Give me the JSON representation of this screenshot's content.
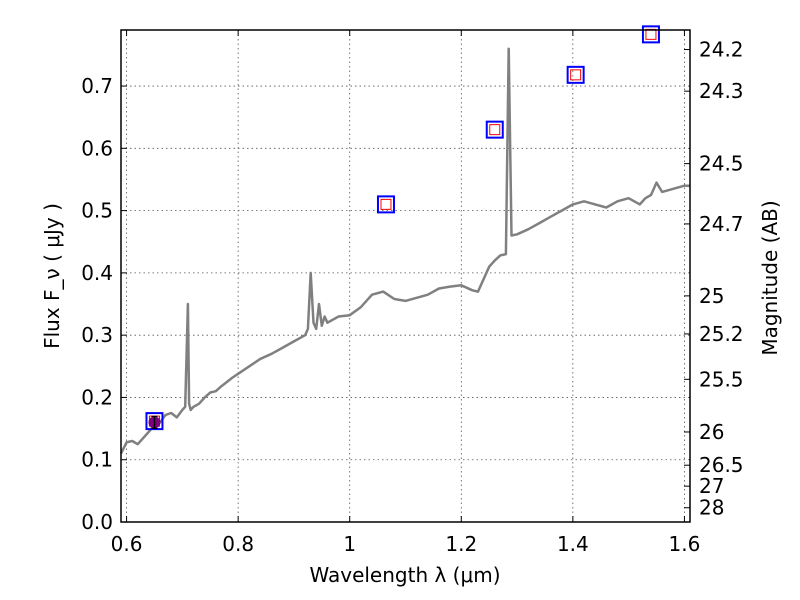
{
  "chart_data": {
    "type": "line",
    "xlabel": "Wavelength  λ (μm)",
    "ylabel": "Flux  F_ν  ( μJy )",
    "y2label": "Magnitude (AB)",
    "xlim": [
      0.59,
      1.61
    ],
    "ylim": [
      0.0,
      0.79
    ],
    "grid": true,
    "x_ticks": [
      0.6,
      0.8,
      1.0,
      1.2,
      1.4,
      1.6
    ],
    "x_tick_labels": [
      "0.6",
      "0.8",
      "1",
      "1.2",
      "1.4",
      "1.6"
    ],
    "y_ticks": [
      0.0,
      0.1,
      0.2,
      0.3,
      0.4,
      0.5,
      0.6,
      0.7
    ],
    "y_tick_labels": [
      "0.0",
      "0.1",
      "0.2",
      "0.3",
      "0.4",
      "0.5",
      "0.6",
      "0.7"
    ],
    "mag_ticks": [
      "24.2",
      "24.3",
      "24.5",
      "24.7",
      "25",
      "25.2",
      "25.5",
      "26",
      "26.5",
      "27",
      "28"
    ],
    "colors": {
      "spectrum": "#808080",
      "open_square_outer": "#0000ff",
      "open_square_inner": "#ff0000",
      "filled_marker": "#7f007f",
      "axis": "#000000",
      "grid": "#555555"
    },
    "series": [
      {
        "type": "line",
        "x": [
          0.59,
          0.6,
          0.61,
          0.62,
          0.63,
          0.64,
          0.65,
          0.66,
          0.67,
          0.68,
          0.69,
          0.7,
          0.705,
          0.71,
          0.712,
          0.715,
          0.72,
          0.73,
          0.74,
          0.75,
          0.76,
          0.77,
          0.78,
          0.79,
          0.8,
          0.82,
          0.84,
          0.86,
          0.88,
          0.9,
          0.91,
          0.92,
          0.925,
          0.93,
          0.935,
          0.94,
          0.945,
          0.95,
          0.955,
          0.96,
          0.98,
          1.0,
          1.02,
          1.04,
          1.06,
          1.08,
          1.1,
          1.12,
          1.14,
          1.16,
          1.18,
          1.2,
          1.22,
          1.23,
          1.24,
          1.25,
          1.26,
          1.27,
          1.28,
          1.285,
          1.29,
          1.3,
          1.32,
          1.34,
          1.36,
          1.38,
          1.4,
          1.42,
          1.44,
          1.46,
          1.48,
          1.5,
          1.52,
          1.53,
          1.54,
          1.55,
          1.56,
          1.58,
          1.6,
          1.61
        ],
        "y": [
          0.11,
          0.128,
          0.13,
          0.125,
          0.135,
          0.145,
          0.155,
          0.16,
          0.172,
          0.175,
          0.168,
          0.18,
          0.185,
          0.35,
          0.19,
          0.18,
          0.185,
          0.19,
          0.2,
          0.208,
          0.21,
          0.218,
          0.225,
          0.232,
          0.238,
          0.25,
          0.262,
          0.27,
          0.28,
          0.29,
          0.295,
          0.3,
          0.31,
          0.4,
          0.32,
          0.31,
          0.35,
          0.315,
          0.33,
          0.32,
          0.33,
          0.332,
          0.345,
          0.365,
          0.37,
          0.358,
          0.355,
          0.36,
          0.365,
          0.375,
          0.378,
          0.38,
          0.372,
          0.37,
          0.39,
          0.41,
          0.42,
          0.428,
          0.43,
          0.76,
          0.46,
          0.462,
          0.47,
          0.48,
          0.49,
          0.5,
          0.51,
          0.515,
          0.51,
          0.505,
          0.515,
          0.52,
          0.51,
          0.52,
          0.525,
          0.545,
          0.53,
          0.535,
          0.54,
          0.54
        ]
      },
      {
        "type": "scatter",
        "marker": "open-square",
        "x": [
          0.65,
          1.065,
          1.26,
          1.405,
          1.54
        ],
        "y": [
          0.162,
          0.51,
          0.63,
          0.718,
          0.783
        ]
      },
      {
        "type": "scatter",
        "marker": "filled-circle-errorbar",
        "x": [
          0.65
        ],
        "y": [
          0.16
        ]
      }
    ]
  }
}
